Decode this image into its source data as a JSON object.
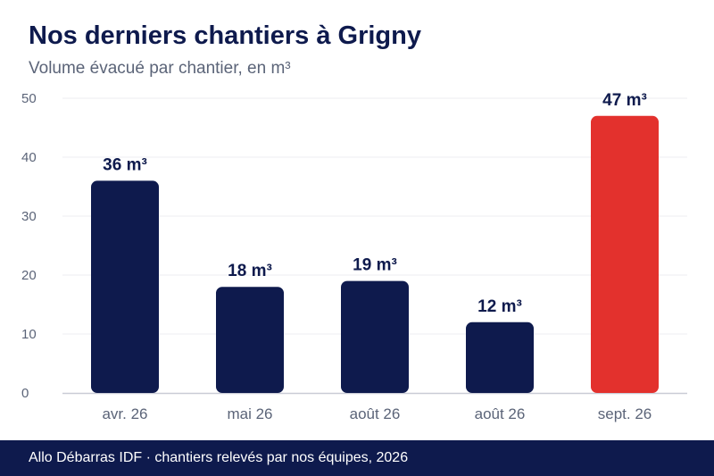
{
  "header": {
    "title": "Nos derniers chantiers à Grigny",
    "subtitle": "Volume évacué par chantier, en m³"
  },
  "footer": {
    "text": "Allo Débarras IDF · chantiers relevés par nos équipes, 2026"
  },
  "colors": {
    "bar": "#0e1a4d",
    "highlight": "#e3312d",
    "grid": "#ececf0",
    "axis_text": "#5b6478",
    "label_text": "#0e1a4d"
  },
  "chart_data": {
    "type": "bar",
    "categories": [
      "avr. 26",
      "mai 26",
      "août 26",
      "août 26",
      "sept. 26"
    ],
    "values": [
      36,
      18,
      19,
      12,
      47
    ],
    "value_labels": [
      "36 m³",
      "18 m³",
      "19 m³",
      "12 m³",
      "47 m³"
    ],
    "highlight_index": 4,
    "title": "Nos derniers chantiers à Grigny",
    "subtitle": "Volume évacué par chantier, en m³",
    "xlabel": "",
    "ylabel": "",
    "ylim": [
      0,
      50
    ],
    "yticks": [
      "0",
      "10",
      "20",
      "30",
      "40",
      "50"
    ],
    "grid": true,
    "legend": "none"
  }
}
